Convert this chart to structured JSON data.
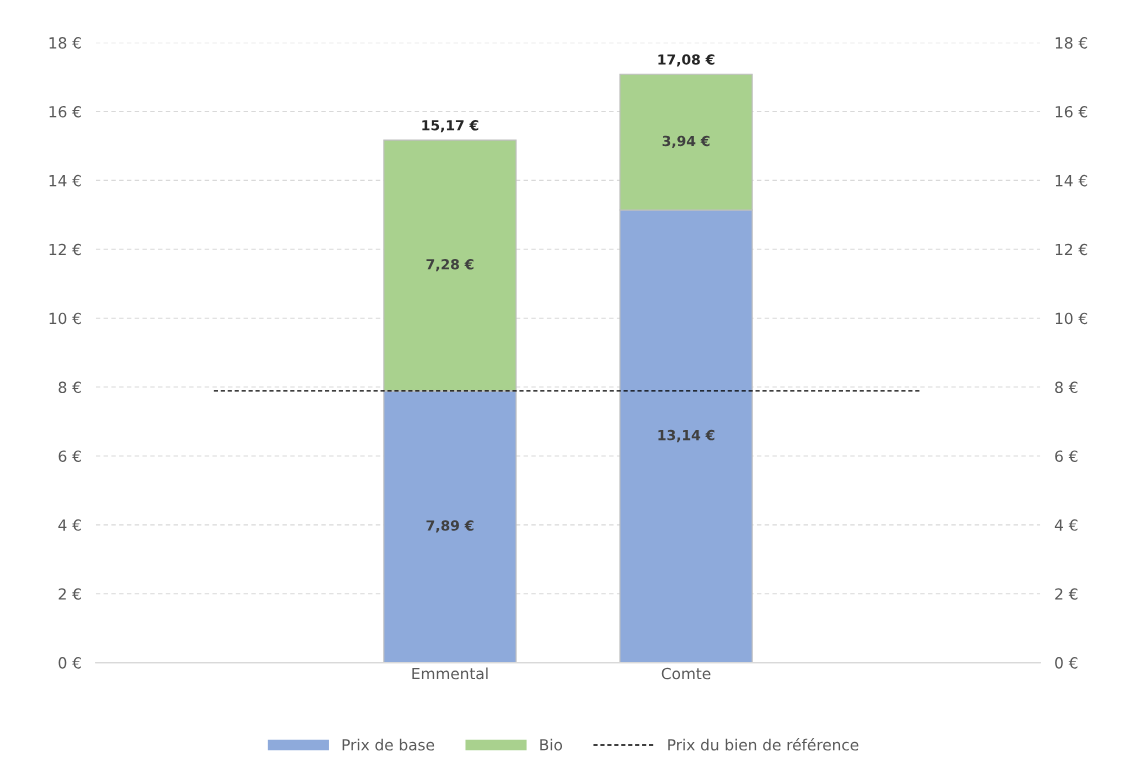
{
  "chart_data": {
    "type": "bar",
    "stacked": true,
    "categories": [
      null,
      "Emmental",
      "Comte",
      null
    ],
    "series": [
      {
        "name": "Prix de base",
        "color": "#8eaadb",
        "values": [
          null,
          7.89,
          13.14,
          null
        ],
        "value_labels": [
          null,
          "7,89 €",
          "13,14 €",
          null
        ]
      },
      {
        "name": "Bio",
        "color": "#a9d18e",
        "values": [
          null,
          7.28,
          3.94,
          null
        ],
        "value_labels": [
          null,
          "7,28 €",
          "3,94 €",
          null
        ]
      },
      {
        "name": "Prix du bien de référence",
        "type": "line",
        "color": "#000000",
        "line_style": "dashed",
        "marker": "none",
        "values": [
          7.89,
          7.89,
          7.89,
          7.89
        ]
      }
    ],
    "totals": [
      null,
      "15,17 €",
      "17,08 €",
      null
    ],
    "ylim": [
      0,
      18
    ],
    "yticks": [
      {
        "value": 0,
        "label": "0 €"
      },
      {
        "value": 2,
        "label": "2 €"
      },
      {
        "value": 4,
        "label": "4 €"
      },
      {
        "value": 6,
        "label": "6 €"
      },
      {
        "value": 8,
        "label": "8 €"
      },
      {
        "value": 10,
        "label": "10 €"
      },
      {
        "value": 12,
        "label": "12 €"
      },
      {
        "value": 14,
        "label": "14 €"
      },
      {
        "value": 16,
        "label": "16 €"
      },
      {
        "value": 18,
        "label": "18 €"
      }
    ],
    "y2lim": [
      0,
      18
    ],
    "y2ticks": [
      {
        "value": 0,
        "label": "0 €"
      },
      {
        "value": 2,
        "label": "2 €"
      },
      {
        "value": 4,
        "label": "4 €"
      },
      {
        "value": 6,
        "label": "6 €"
      },
      {
        "value": 8,
        "label": "8 €"
      },
      {
        "value": 10,
        "label": "10 €"
      },
      {
        "value": 12,
        "label": "12 €"
      },
      {
        "value": 14,
        "label": "14 €"
      },
      {
        "value": 16,
        "label": "16 €"
      },
      {
        "value": 18,
        "label": "18 €"
      }
    ],
    "grid": "y",
    "legend": "bottom"
  }
}
